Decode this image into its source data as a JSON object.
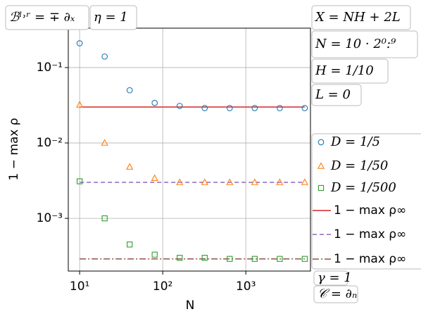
{
  "chart_data": {
    "type": "scatter",
    "x_label": "N",
    "y_label": "1 − max ρ",
    "x": [
      10,
      20,
      40,
      80,
      160,
      320,
      640,
      1280,
      2560,
      5120
    ],
    "xscale": "log",
    "yscale": "log",
    "grid": true,
    "xlim": [
      7.3,
      6000
    ],
    "ylim": [
      0.0002,
      0.333
    ],
    "xticks": [
      {
        "value": 10,
        "label": "10¹"
      },
      {
        "value": 100,
        "label": "10²"
      },
      {
        "value": 1000,
        "label": "10³"
      }
    ],
    "yticks": [
      {
        "value": 0.1,
        "label": "10⁻¹"
      },
      {
        "value": 0.01,
        "label": "10⁻²"
      },
      {
        "value": 0.001,
        "label": "10⁻³"
      }
    ],
    "series": [
      {
        "name": "D = 1/5",
        "color": "#1f77b4",
        "marker": "circle",
        "values": [
          0.21,
          0.14,
          0.05,
          0.034,
          0.031,
          0.029,
          0.029,
          0.029,
          0.029,
          0.029
        ]
      },
      {
        "name": "D = 1/50",
        "color": "#ff7f0e",
        "marker": "triangle",
        "values": [
          0.032,
          0.01,
          0.0048,
          0.0034,
          0.003,
          0.003,
          0.003,
          0.003,
          0.003,
          0.003
        ]
      },
      {
        "name": "D = 1/500",
        "color": "#2ca02c",
        "marker": "square",
        "values": [
          0.0031,
          0.001,
          0.00045,
          0.00033,
          0.0003,
          0.0003,
          0.00029,
          0.00029,
          0.00029,
          0.00029
        ]
      }
    ],
    "hlines": [
      {
        "name": "1 − max ρ∞",
        "color": "#d62728",
        "dash": "none",
        "value": 0.03
      },
      {
        "name": "1 − max ρ∞",
        "color": "#9467bd",
        "dash": "6 4",
        "value": 0.003
      },
      {
        "name": "1 − max ρ∞",
        "color": "#8c564b",
        "dash": "9 3 2 3",
        "value": 0.00029
      }
    ],
    "annotations": [
      "ℬˡ˒ʳ = ∓ ∂ₓ",
      "η = 1",
      "X = NH + 2L",
      "N = 10 · 2⁰:⁹",
      "H = 1/10",
      "L = 0",
      "γ = 1",
      "𝒞 = ∂ₙ"
    ]
  }
}
